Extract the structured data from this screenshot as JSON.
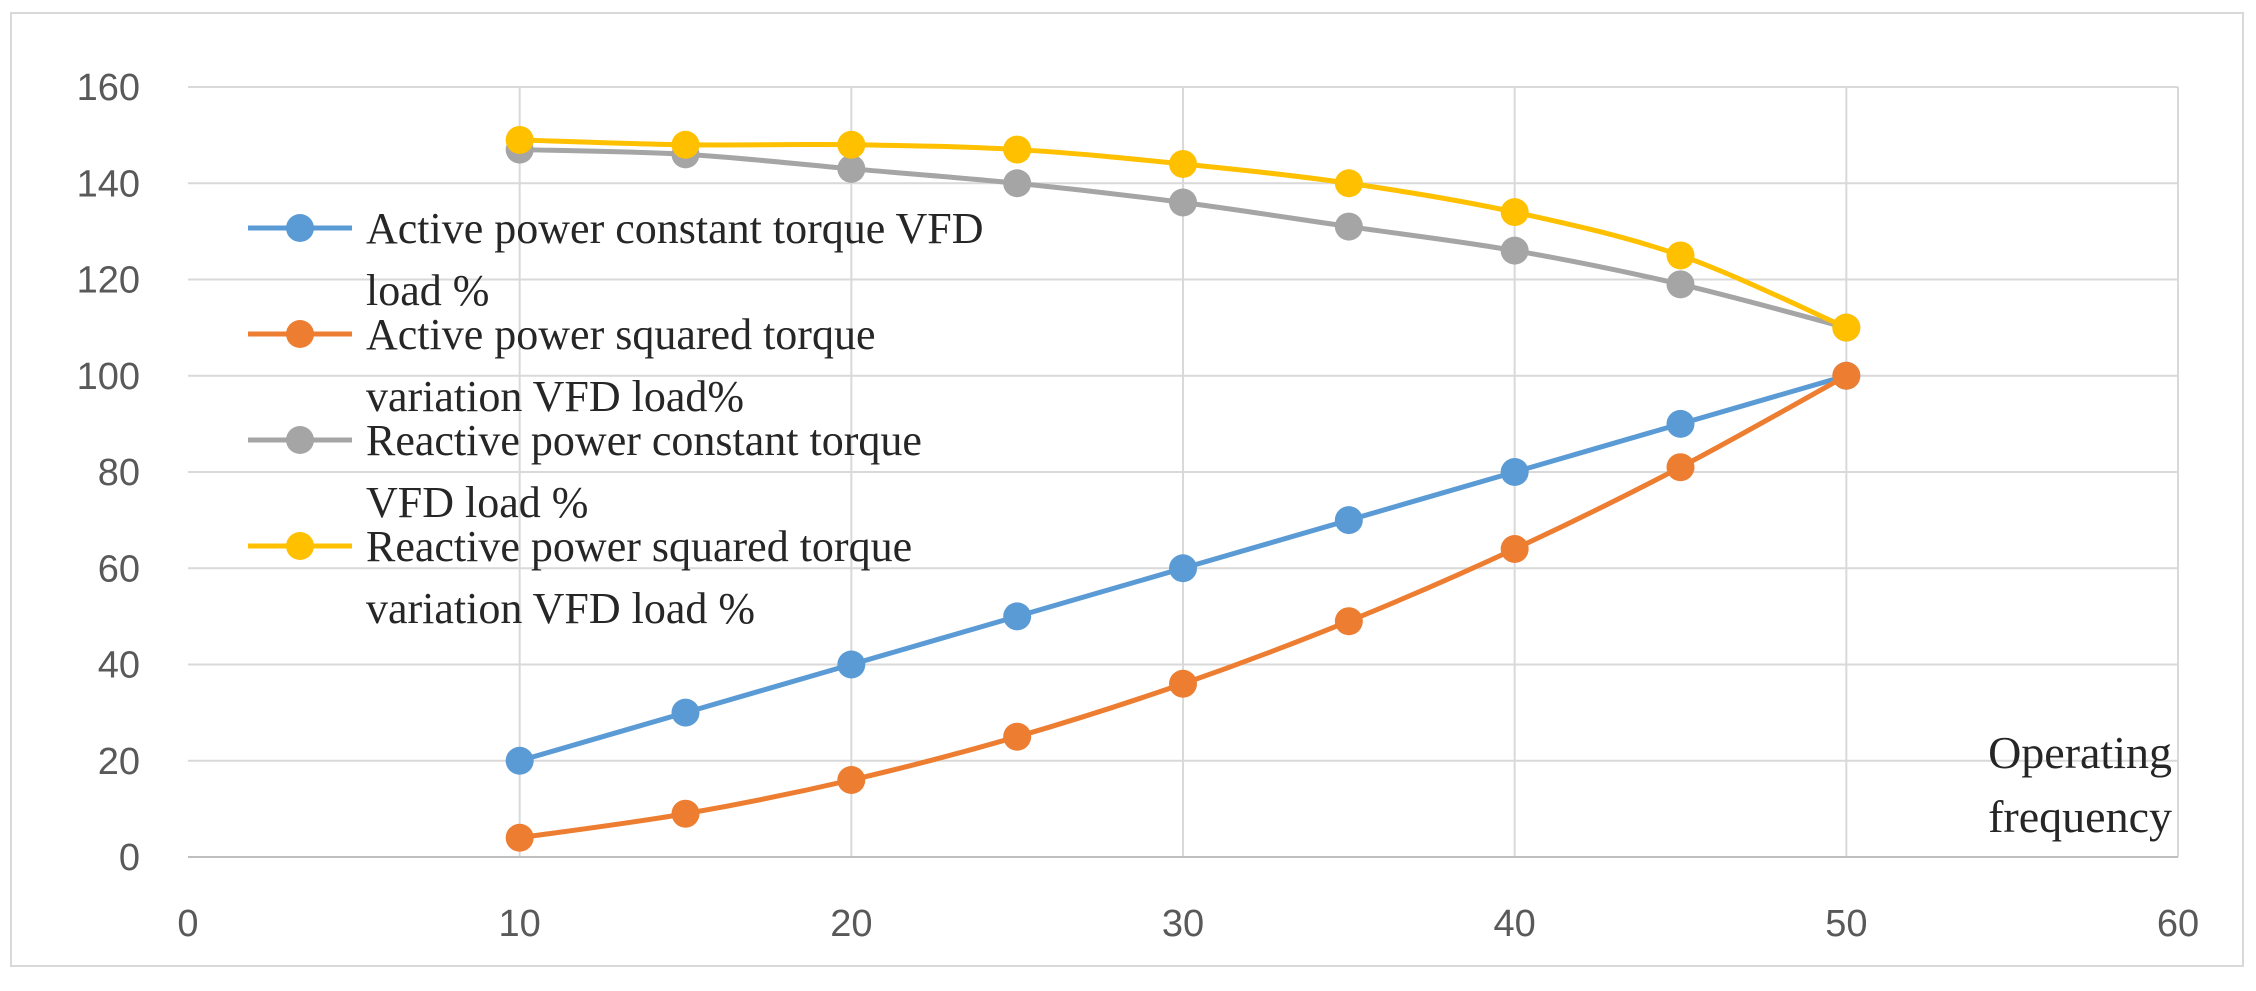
{
  "chart_data": {
    "type": "line",
    "title": "",
    "xlabel": "Operating frequency",
    "xlabel_lines": [
      "Operating",
      "frequency"
    ],
    "ylabel": "",
    "xlim": [
      0,
      60
    ],
    "ylim": [
      0,
      160
    ],
    "x_ticks": [
      0,
      10,
      20,
      30,
      40,
      50,
      60
    ],
    "y_ticks": [
      0,
      20,
      40,
      60,
      80,
      100,
      120,
      140,
      160
    ],
    "grid": true,
    "legend_position": "upper-left",
    "x": [
      10,
      15,
      20,
      25,
      30,
      35,
      40,
      45,
      50
    ],
    "series": [
      {
        "name": "Active power constant torque VFD load %",
        "legend_lines": [
          "Active power constant torque VFD",
          "load %"
        ],
        "color": "#5b9bd5",
        "values": [
          20,
          30,
          40,
          50,
          60,
          70,
          80,
          90,
          100
        ]
      },
      {
        "name": "Active power squared torque variation VFD load%",
        "legend_lines": [
          "Active power squared torque",
          "variation VFD load%"
        ],
        "color": "#ed7d31",
        "values": [
          4,
          9,
          16,
          25,
          36,
          49,
          64,
          81,
          100
        ]
      },
      {
        "name": "Reactive power constant torque VFD load %",
        "legend_lines": [
          "Reactive power constant torque",
          "VFD load %"
        ],
        "color": "#a5a5a5",
        "values": [
          147,
          146,
          143,
          140,
          136,
          131,
          126,
          119,
          110
        ]
      },
      {
        "name": "Reactive power squared torque variation VFD load %",
        "legend_lines": [
          "Reactive power squared torque",
          "variation VFD load %"
        ],
        "color": "#ffc000",
        "values": [
          149,
          148,
          148,
          147,
          144,
          140,
          134,
          125,
          110
        ]
      }
    ]
  }
}
